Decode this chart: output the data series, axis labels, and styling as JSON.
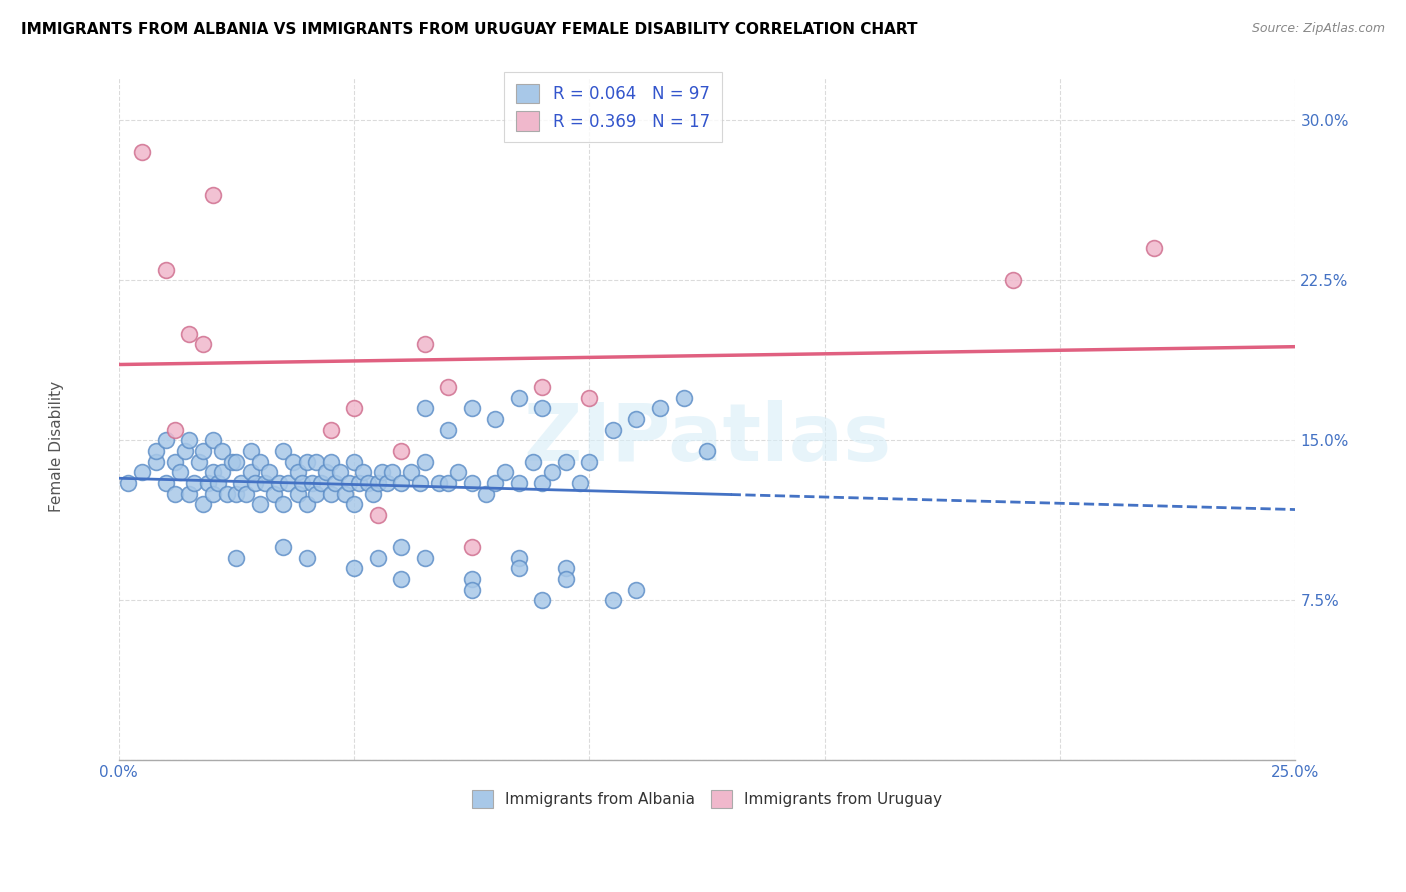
{
  "title": "IMMIGRANTS FROM ALBANIA VS IMMIGRANTS FROM URUGUAY FEMALE DISABILITY CORRELATION CHART",
  "source": "Source: ZipAtlas.com",
  "ylabel": "Female Disability",
  "watermark": "ZIPatlas",
  "xlim": [
    0.0,
    0.25
  ],
  "ylim": [
    0.0,
    0.32
  ],
  "xticks": [
    0.0,
    0.05,
    0.1,
    0.15,
    0.2,
    0.25
  ],
  "yticks": [
    0.0,
    0.075,
    0.15,
    0.225,
    0.3
  ],
  "ytick_labels": [
    "",
    "7.5%",
    "15.0%",
    "22.5%",
    "30.0%"
  ],
  "xtick_labels": [
    "0.0%",
    "",
    "",
    "",
    "",
    "25.0%"
  ],
  "albania_R": 0.064,
  "albania_N": 97,
  "uruguay_R": 0.369,
  "uruguay_N": 17,
  "albania_color": "#a8c8e8",
  "albania_edge_color": "#6090c8",
  "albania_line_color": "#4472c4",
  "uruguay_color": "#f0b8cc",
  "uruguay_edge_color": "#d07090",
  "uruguay_line_color": "#e06080",
  "legend_text_color": "#3355cc",
  "tick_color": "#4472c4",
  "albania_x": [
    0.002,
    0.005,
    0.008,
    0.008,
    0.01,
    0.01,
    0.012,
    0.012,
    0.013,
    0.014,
    0.015,
    0.015,
    0.016,
    0.017,
    0.018,
    0.018,
    0.019,
    0.02,
    0.02,
    0.02,
    0.021,
    0.022,
    0.022,
    0.023,
    0.024,
    0.025,
    0.025,
    0.026,
    0.027,
    0.028,
    0.028,
    0.029,
    0.03,
    0.03,
    0.031,
    0.032,
    0.033,
    0.034,
    0.035,
    0.035,
    0.036,
    0.037,
    0.038,
    0.038,
    0.039,
    0.04,
    0.04,
    0.041,
    0.042,
    0.042,
    0.043,
    0.044,
    0.045,
    0.045,
    0.046,
    0.047,
    0.048,
    0.049,
    0.05,
    0.05,
    0.051,
    0.052,
    0.053,
    0.054,
    0.055,
    0.056,
    0.057,
    0.058,
    0.06,
    0.062,
    0.064,
    0.065,
    0.068,
    0.07,
    0.072,
    0.075,
    0.078,
    0.08,
    0.082,
    0.085,
    0.088,
    0.09,
    0.092,
    0.095,
    0.098,
    0.1,
    0.105,
    0.11,
    0.115,
    0.12,
    0.125,
    0.065,
    0.07,
    0.075,
    0.08,
    0.085,
    0.09
  ],
  "albania_y": [
    0.13,
    0.135,
    0.14,
    0.145,
    0.13,
    0.15,
    0.125,
    0.14,
    0.135,
    0.145,
    0.125,
    0.15,
    0.13,
    0.14,
    0.12,
    0.145,
    0.13,
    0.125,
    0.135,
    0.15,
    0.13,
    0.135,
    0.145,
    0.125,
    0.14,
    0.125,
    0.14,
    0.13,
    0.125,
    0.135,
    0.145,
    0.13,
    0.12,
    0.14,
    0.13,
    0.135,
    0.125,
    0.13,
    0.12,
    0.145,
    0.13,
    0.14,
    0.125,
    0.135,
    0.13,
    0.12,
    0.14,
    0.13,
    0.125,
    0.14,
    0.13,
    0.135,
    0.125,
    0.14,
    0.13,
    0.135,
    0.125,
    0.13,
    0.12,
    0.14,
    0.13,
    0.135,
    0.13,
    0.125,
    0.13,
    0.135,
    0.13,
    0.135,
    0.13,
    0.135,
    0.13,
    0.14,
    0.13,
    0.13,
    0.135,
    0.13,
    0.125,
    0.13,
    0.135,
    0.13,
    0.14,
    0.13,
    0.135,
    0.14,
    0.13,
    0.14,
    0.155,
    0.16,
    0.165,
    0.17,
    0.145,
    0.165,
    0.155,
    0.165,
    0.16,
    0.17,
    0.165
  ],
  "albania_outlier_x": [
    0.025,
    0.035,
    0.04,
    0.05,
    0.055,
    0.06,
    0.075,
    0.085,
    0.095,
    0.105,
    0.11,
    0.06,
    0.065,
    0.075,
    0.085,
    0.09,
    0.095
  ],
  "albania_outlier_y": [
    0.095,
    0.1,
    0.095,
    0.09,
    0.095,
    0.085,
    0.085,
    0.095,
    0.09,
    0.075,
    0.08,
    0.1,
    0.095,
    0.08,
    0.09,
    0.075,
    0.085
  ],
  "uruguay_x": [
    0.005,
    0.01,
    0.012,
    0.015,
    0.018,
    0.02,
    0.045,
    0.05,
    0.055,
    0.06,
    0.065,
    0.07,
    0.075,
    0.09,
    0.19,
    0.22,
    0.1
  ],
  "uruguay_y": [
    0.285,
    0.23,
    0.155,
    0.2,
    0.195,
    0.265,
    0.155,
    0.165,
    0.115,
    0.145,
    0.195,
    0.175,
    0.1,
    0.175,
    0.225,
    0.24,
    0.17
  ]
}
